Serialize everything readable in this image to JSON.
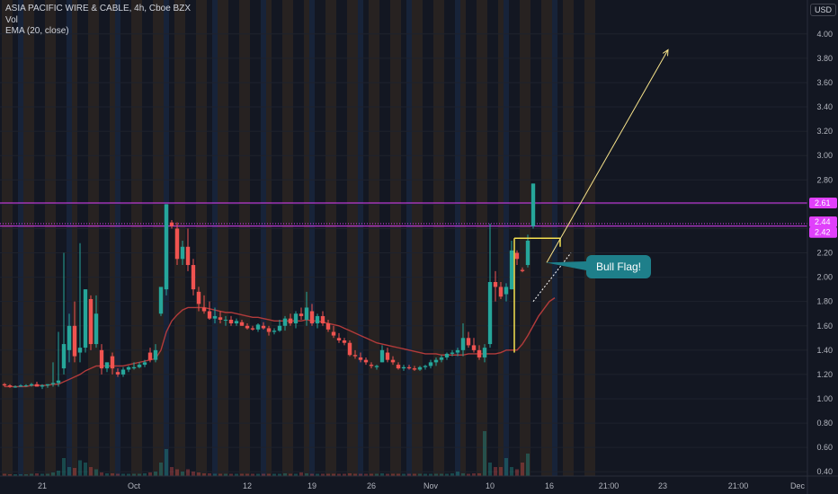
{
  "legend": {
    "title": "ASIA PACIFIC WIRE & CABLE, 4h, Cboe BZX",
    "vol": "Vol",
    "ema": "EMA (20, close)"
  },
  "currency": "USD",
  "callout_text": "Bull Flag!",
  "colors": {
    "background": "#131722",
    "up": "#26a69a",
    "down": "#ef5350",
    "ema": "#b23b3b",
    "resistance": "#e040fb",
    "flag": "#f5e050"
  },
  "chart_data": {
    "type": "candlestick",
    "title": "ASIA PACIFIC WIRE & CABLE, 4h, Cboe BZX",
    "ylim": [
      0.35,
      4.15
    ],
    "y_ticks": [
      0.4,
      0.6,
      0.8,
      1.0,
      1.2,
      1.4,
      1.6,
      1.8,
      2.0,
      2.2,
      2.4,
      2.6,
      2.8,
      3.0,
      3.2,
      3.4,
      3.6,
      3.8,
      4.0
    ],
    "y_tick_labels": [
      "0.40",
      "0.60",
      "0.80",
      "1.00",
      "1.20",
      "1.40",
      "1.60",
      "1.80",
      "2.00",
      "2.20",
      "2.40",
      "2.60",
      "2.80",
      "3.00",
      "3.20",
      "3.40",
      "3.60",
      "3.80",
      "4.00"
    ],
    "x_tick_labels": [
      {
        "label": "21",
        "bar": 7
      },
      {
        "label": "Oct",
        "bar": 24
      },
      {
        "label": "12",
        "bar": 45
      },
      {
        "label": "19",
        "bar": 57
      },
      {
        "label": "26",
        "bar": 68
      },
      {
        "label": "Nov",
        "bar": 79
      },
      {
        "label": "10",
        "bar": 90
      },
      {
        "label": "16",
        "bar": 101
      },
      {
        "label": "21:00",
        "bar": 112
      },
      {
        "label": "23",
        "bar": 122
      },
      {
        "label": "21:00",
        "bar": 136
      },
      {
        "label": "Dec",
        "bar": 147
      }
    ],
    "price_lines": [
      {
        "value": 2.61,
        "label": "2.61",
        "style": "solid"
      },
      {
        "value": 2.44,
        "label": "2.44",
        "style": "dotted"
      },
      {
        "value": 2.42,
        "label": "2.42",
        "style": "solid"
      }
    ],
    "candles": [
      {
        "o": 1.12,
        "h": 1.13,
        "l": 1.1,
        "c": 1.11
      },
      {
        "o": 1.11,
        "h": 1.12,
        "l": 1.09,
        "c": 1.1
      },
      {
        "o": 1.1,
        "h": 1.11,
        "l": 1.09,
        "c": 1.1
      },
      {
        "o": 1.1,
        "h": 1.12,
        "l": 1.1,
        "c": 1.11
      },
      {
        "o": 1.11,
        "h": 1.12,
        "l": 1.1,
        "c": 1.11
      },
      {
        "o": 1.11,
        "h": 1.13,
        "l": 1.1,
        "c": 1.12
      },
      {
        "o": 1.12,
        "h": 1.14,
        "l": 1.1,
        "c": 1.1
      },
      {
        "o": 1.1,
        "h": 1.12,
        "l": 1.08,
        "c": 1.11
      },
      {
        "o": 1.11,
        "h": 1.12,
        "l": 1.09,
        "c": 1.12
      },
      {
        "o": 1.12,
        "h": 1.3,
        "l": 1.1,
        "c": 1.13
      },
      {
        "o": 1.13,
        "h": 1.55,
        "l": 1.1,
        "c": 1.15
      },
      {
        "o": 1.25,
        "h": 2.2,
        "l": 1.2,
        "c": 1.45
      },
      {
        "o": 1.4,
        "h": 1.7,
        "l": 1.3,
        "c": 1.6
      },
      {
        "o": 1.6,
        "h": 1.8,
        "l": 1.3,
        "c": 1.35
      },
      {
        "o": 1.38,
        "h": 2.28,
        "l": 1.3,
        "c": 1.42
      },
      {
        "o": 1.42,
        "h": 1.9,
        "l": 1.38,
        "c": 1.9
      },
      {
        "o": 1.82,
        "h": 1.85,
        "l": 1.4,
        "c": 1.45
      },
      {
        "o": 1.45,
        "h": 1.85,
        "l": 1.42,
        "c": 1.7
      },
      {
        "o": 1.4,
        "h": 1.45,
        "l": 1.2,
        "c": 1.25
      },
      {
        "o": 1.25,
        "h": 1.3,
        "l": 1.22,
        "c": 1.3
      },
      {
        "o": 1.35,
        "h": 1.38,
        "l": 1.2,
        "c": 1.25
      },
      {
        "o": 1.22,
        "h": 1.25,
        "l": 1.18,
        "c": 1.2
      },
      {
        "o": 1.2,
        "h": 1.26,
        "l": 1.18,
        "c": 1.24
      },
      {
        "o": 1.24,
        "h": 1.27,
        "l": 1.22,
        "c": 1.26
      },
      {
        "o": 1.25,
        "h": 1.3,
        "l": 1.24,
        "c": 1.26
      },
      {
        "o": 1.26,
        "h": 1.3,
        "l": 1.25,
        "c": 1.28
      },
      {
        "o": 1.28,
        "h": 1.32,
        "l": 1.26,
        "c": 1.3
      },
      {
        "o": 1.38,
        "h": 1.42,
        "l": 1.3,
        "c": 1.32
      },
      {
        "o": 1.32,
        "h": 1.45,
        "l": 1.3,
        "c": 1.4
      },
      {
        "o": 1.7,
        "h": 1.9,
        "l": 1.68,
        "c": 1.92
      },
      {
        "o": 1.9,
        "h": 2.6,
        "l": 1.85,
        "c": 2.6
      },
      {
        "o": 2.45,
        "h": 2.47,
        "l": 2.4,
        "c": 2.42
      },
      {
        "o": 2.4,
        "h": 2.45,
        "l": 2.1,
        "c": 2.15
      },
      {
        "o": 2.15,
        "h": 2.3,
        "l": 2.1,
        "c": 2.25
      },
      {
        "o": 2.25,
        "h": 2.4,
        "l": 2.05,
        "c": 2.1
      },
      {
        "o": 2.1,
        "h": 2.15,
        "l": 1.85,
        "c": 1.9
      },
      {
        "o": 1.88,
        "h": 1.92,
        "l": 1.72,
        "c": 1.78
      },
      {
        "o": 1.75,
        "h": 1.85,
        "l": 1.7,
        "c": 1.72
      },
      {
        "o": 1.72,
        "h": 1.8,
        "l": 1.65,
        "c": 1.66
      },
      {
        "o": 1.66,
        "h": 1.75,
        "l": 1.62,
        "c": 1.68
      },
      {
        "o": 1.67,
        "h": 1.72,
        "l": 1.62,
        "c": 1.65
      },
      {
        "o": 1.65,
        "h": 1.68,
        "l": 1.6,
        "c": 1.65
      },
      {
        "o": 1.65,
        "h": 1.68,
        "l": 1.6,
        "c": 1.62
      },
      {
        "o": 1.62,
        "h": 1.66,
        "l": 1.6,
        "c": 1.64
      },
      {
        "o": 1.63,
        "h": 1.65,
        "l": 1.6,
        "c": 1.6
      },
      {
        "o": 1.6,
        "h": 1.62,
        "l": 1.57,
        "c": 1.58
      },
      {
        "o": 1.58,
        "h": 1.6,
        "l": 1.56,
        "c": 1.57
      },
      {
        "o": 1.57,
        "h": 1.62,
        "l": 1.55,
        "c": 1.61
      },
      {
        "o": 1.6,
        "h": 1.63,
        "l": 1.57,
        "c": 1.58
      },
      {
        "o": 1.58,
        "h": 1.6,
        "l": 1.52,
        "c": 1.55
      },
      {
        "o": 1.55,
        "h": 1.58,
        "l": 1.53,
        "c": 1.56
      },
      {
        "o": 1.56,
        "h": 1.65,
        "l": 1.55,
        "c": 1.6
      },
      {
        "o": 1.6,
        "h": 1.68,
        "l": 1.56,
        "c": 1.66
      },
      {
        "o": 1.66,
        "h": 1.7,
        "l": 1.6,
        "c": 1.62
      },
      {
        "o": 1.62,
        "h": 1.72,
        "l": 1.58,
        "c": 1.7
      },
      {
        "o": 1.7,
        "h": 1.75,
        "l": 1.65,
        "c": 1.68
      },
      {
        "o": 1.65,
        "h": 1.88,
        "l": 1.6,
        "c": 1.75
      },
      {
        "o": 1.72,
        "h": 1.78,
        "l": 1.6,
        "c": 1.62
      },
      {
        "o": 1.62,
        "h": 1.7,
        "l": 1.58,
        "c": 1.68
      },
      {
        "o": 1.68,
        "h": 1.72,
        "l": 1.6,
        "c": 1.62
      },
      {
        "o": 1.62,
        "h": 1.65,
        "l": 1.55,
        "c": 1.57
      },
      {
        "o": 1.55,
        "h": 1.6,
        "l": 1.5,
        "c": 1.52
      },
      {
        "o": 1.5,
        "h": 1.54,
        "l": 1.46,
        "c": 1.48
      },
      {
        "o": 1.48,
        "h": 1.5,
        "l": 1.44,
        "c": 1.46
      },
      {
        "o": 1.46,
        "h": 1.48,
        "l": 1.35,
        "c": 1.36
      },
      {
        "o": 1.36,
        "h": 1.4,
        "l": 1.33,
        "c": 1.35
      },
      {
        "o": 1.34,
        "h": 1.38,
        "l": 1.3,
        "c": 1.32
      },
      {
        "o": 1.32,
        "h": 1.34,
        "l": 1.28,
        "c": 1.3
      },
      {
        "o": 1.28,
        "h": 1.3,
        "l": 1.25,
        "c": 1.27
      },
      {
        "o": 1.26,
        "h": 1.28,
        "l": 1.24,
        "c": 1.27
      },
      {
        "o": 1.3,
        "h": 1.44,
        "l": 1.3,
        "c": 1.4
      },
      {
        "o": 1.38,
        "h": 1.42,
        "l": 1.3,
        "c": 1.32
      },
      {
        "o": 1.32,
        "h": 1.35,
        "l": 1.28,
        "c": 1.3
      },
      {
        "o": 1.28,
        "h": 1.3,
        "l": 1.24,
        "c": 1.25
      },
      {
        "o": 1.25,
        "h": 1.28,
        "l": 1.23,
        "c": 1.26
      },
      {
        "o": 1.26,
        "h": 1.28,
        "l": 1.24,
        "c": 1.25
      },
      {
        "o": 1.25,
        "h": 1.27,
        "l": 1.23,
        "c": 1.24
      },
      {
        "o": 1.24,
        "h": 1.27,
        "l": 1.23,
        "c": 1.26
      },
      {
        "o": 1.26,
        "h": 1.28,
        "l": 1.24,
        "c": 1.27
      },
      {
        "o": 1.27,
        "h": 1.32,
        "l": 1.25,
        "c": 1.3
      },
      {
        "o": 1.3,
        "h": 1.34,
        "l": 1.27,
        "c": 1.32
      },
      {
        "o": 1.32,
        "h": 1.36,
        "l": 1.3,
        "c": 1.34
      },
      {
        "o": 1.34,
        "h": 1.38,
        "l": 1.32,
        "c": 1.37
      },
      {
        "o": 1.37,
        "h": 1.4,
        "l": 1.35,
        "c": 1.38
      },
      {
        "o": 1.38,
        "h": 1.42,
        "l": 1.35,
        "c": 1.4
      },
      {
        "o": 1.4,
        "h": 1.62,
        "l": 1.35,
        "c": 1.5
      },
      {
        "o": 1.5,
        "h": 1.55,
        "l": 1.42,
        "c": 1.44
      },
      {
        "o": 1.44,
        "h": 1.5,
        "l": 1.38,
        "c": 1.4
      },
      {
        "o": 1.4,
        "h": 1.44,
        "l": 1.32,
        "c": 1.34
      },
      {
        "o": 1.34,
        "h": 1.45,
        "l": 1.3,
        "c": 1.42
      },
      {
        "o": 1.45,
        "h": 2.44,
        "l": 1.42,
        "c": 1.96
      },
      {
        "o": 1.96,
        "h": 2.05,
        "l": 1.8,
        "c": 1.92
      },
      {
        "o": 1.92,
        "h": 1.96,
        "l": 1.82,
        "c": 1.84
      },
      {
        "o": 1.86,
        "h": 1.95,
        "l": 1.8,
        "c": 1.92
      },
      {
        "o": 1.9,
        "h": 2.3,
        "l": 1.9,
        "c": 2.22
      },
      {
        "o": 2.2,
        "h": 2.22,
        "l": 2.1,
        "c": 2.15
      },
      {
        "o": 2.06,
        "h": 2.08,
        "l": 2.04,
        "c": 2.05
      },
      {
        "o": 2.1,
        "h": 2.35,
        "l": 2.08,
        "c": 2.3
      },
      {
        "o": 2.42,
        "h": 2.77,
        "l": 2.4,
        "c": 2.77
      }
    ],
    "ema": [
      1.1,
      1.1,
      1.1,
      1.1,
      1.1,
      1.11,
      1.11,
      1.11,
      1.11,
      1.12,
      1.12,
      1.14,
      1.16,
      1.18,
      1.2,
      1.23,
      1.25,
      1.27,
      1.27,
      1.27,
      1.27,
      1.27,
      1.27,
      1.28,
      1.29,
      1.3,
      1.31,
      1.32,
      1.33,
      1.4,
      1.55,
      1.64,
      1.69,
      1.73,
      1.75,
      1.75,
      1.75,
      1.75,
      1.74,
      1.73,
      1.72,
      1.71,
      1.71,
      1.7,
      1.69,
      1.68,
      1.67,
      1.67,
      1.66,
      1.65,
      1.64,
      1.64,
      1.64,
      1.64,
      1.64,
      1.64,
      1.65,
      1.64,
      1.64,
      1.63,
      1.62,
      1.61,
      1.6,
      1.58,
      1.56,
      1.54,
      1.52,
      1.5,
      1.48,
      1.46,
      1.45,
      1.44,
      1.43,
      1.42,
      1.41,
      1.4,
      1.39,
      1.38,
      1.37,
      1.37,
      1.37,
      1.36,
      1.36,
      1.36,
      1.36,
      1.36,
      1.37,
      1.37,
      1.37,
      1.37,
      1.37,
      1.37,
      1.38,
      1.4,
      1.4,
      1.4,
      1.45,
      1.52,
      1.6,
      1.68,
      1.74,
      1.8,
      1.83
    ],
    "volume": [
      0.05,
      0.04,
      0.04,
      0.04,
      0.04,
      0.05,
      0.06,
      0.05,
      0.05,
      0.08,
      0.12,
      0.4,
      0.2,
      0.18,
      0.35,
      0.3,
      0.2,
      0.15,
      0.08,
      0.06,
      0.06,
      0.05,
      0.05,
      0.05,
      0.05,
      0.05,
      0.06,
      0.08,
      0.1,
      0.3,
      0.6,
      0.2,
      0.15,
      0.1,
      0.15,
      0.1,
      0.08,
      0.06,
      0.06,
      0.05,
      0.05,
      0.05,
      0.05,
      0.05,
      0.05,
      0.05,
      0.05,
      0.05,
      0.05,
      0.05,
      0.05,
      0.05,
      0.06,
      0.05,
      0.05,
      0.08,
      0.06,
      0.05,
      0.05,
      0.05,
      0.05,
      0.05,
      0.05,
      0.05,
      0.06,
      0.05,
      0.05,
      0.05,
      0.05,
      0.05,
      0.06,
      0.05,
      0.05,
      0.05,
      0.05,
      0.05,
      0.05,
      0.05,
      0.05,
      0.05,
      0.05,
      0.05,
      0.05,
      0.06,
      0.1,
      0.06,
      0.05,
      0.06,
      0.06,
      1.0,
      0.3,
      0.2,
      0.2,
      0.4,
      0.2,
      0.15,
      0.3,
      0.5
    ],
    "flag_pole": {
      "bar": 94.5,
      "low": 1.38,
      "high": 2.32
    },
    "flag_top": {
      "from_bar": 94.5,
      "to_bar": 103,
      "value": 2.32
    },
    "channel_line": {
      "from_bar": 98,
      "from_value": 1.8,
      "to_bar": 105,
      "to_value": 2.2
    },
    "projection_arrow": {
      "from_bar": 100.5,
      "from_value": 2.12,
      "to_bar": 123,
      "to_value": 3.87
    }
  }
}
